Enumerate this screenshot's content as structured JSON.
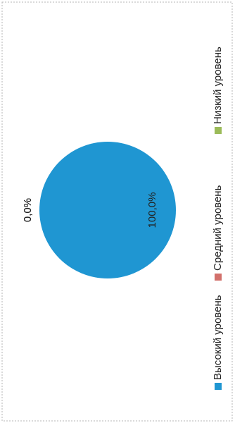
{
  "chart_data": {
    "type": "pie",
    "categories": [
      "Высокий уровень",
      "Средний уровень",
      "Низкий уровень"
    ],
    "values": [
      100,
      0,
      0
    ],
    "value_labels": [
      "100,0%",
      "0,0%",
      "0,0%"
    ],
    "colors": [
      "#1f96d2",
      "#d2706b",
      "#9bbb59"
    ],
    "legend": "right"
  }
}
